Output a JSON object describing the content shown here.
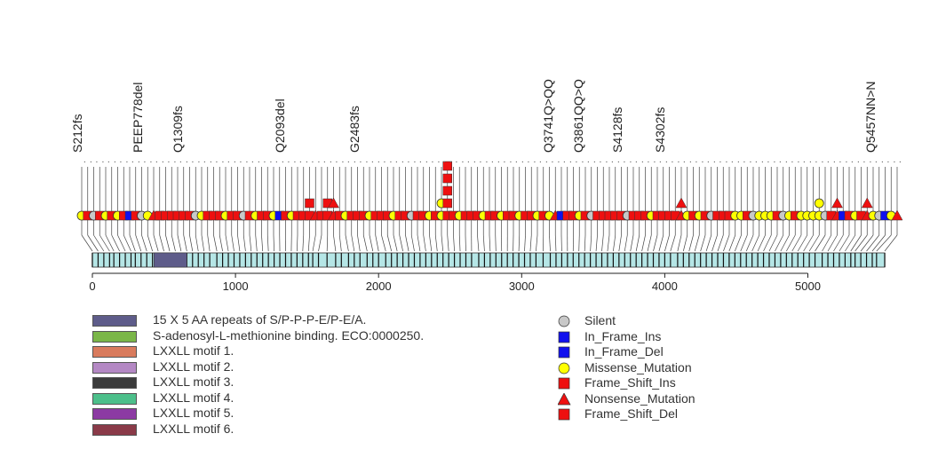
{
  "chart_data": {
    "type": "lollipop",
    "x_axis": {
      "min": 0,
      "max": 5537,
      "ticks": [
        0,
        1000,
        2000,
        3000,
        4000,
        5000
      ]
    },
    "protein_length": 5537,
    "domains": [
      {
        "name": "15 X 5 AA repeats of S/P-P-P-E/P-E/A.",
        "color": "#5e5c8a",
        "start": 430,
        "end": 660
      }
    ],
    "domain_legend": [
      {
        "label": "15 X 5 AA repeats of S/P-P-P-E/P-E/A.",
        "color": "#5e5c8a"
      },
      {
        "label": "S-adenosyl-L-methionine binding. ECO:0000250.",
        "color": "#7ab648"
      },
      {
        "label": "LXXLL motif 1.",
        "color": "#d97b5d"
      },
      {
        "label": "LXXLL motif 2.",
        "color": "#b488c4"
      },
      {
        "label": "LXXLL motif 3.",
        "color": "#3b3b3b"
      },
      {
        "label": "LXXLL motif 4.",
        "color": "#4cbf8a"
      },
      {
        "label": "LXXLL motif 5.",
        "color": "#8c3aa3"
      },
      {
        "label": "LXXLL motif 6.",
        "color": "#8a3a48"
      }
    ],
    "mutation_types": [
      {
        "label": "Silent",
        "color": "#c8c8c8",
        "shape": "circle"
      },
      {
        "label": "In_Frame_Ins",
        "color": "#1010ee",
        "shape": "square"
      },
      {
        "label": "In_Frame_Del",
        "color": "#1010ee",
        "shape": "square"
      },
      {
        "label": "Missense_Mutation",
        "color": "#ffff00",
        "shape": "circle"
      },
      {
        "label": "Frame_Shift_Ins",
        "color": "#ee1010",
        "shape": "square"
      },
      {
        "label": "Nonsense_Mutation",
        "color": "#ee1010",
        "shape": "triangle"
      },
      {
        "label": "Frame_Shift_Del",
        "color": "#ee1010",
        "shape": "square"
      }
    ],
    "mutation_labels": [
      "S212fs",
      "PEEP778del",
      "Q1309fs",
      "Q2093del",
      "G2483fs",
      "Q3741Q>QQ",
      "Q3861QQ>Q",
      "S4128fs",
      "S4302fs",
      "Q5457NN>N"
    ],
    "mutations": [
      {
        "pos": 0,
        "type": "Missense_Mutation",
        "count": 1
      },
      {
        "pos": 40,
        "type": "Frame_Shift_Del",
        "count": 1
      },
      {
        "pos": 80,
        "type": "Silent",
        "count": 1
      },
      {
        "pos": 120,
        "type": "Frame_Shift_Del",
        "count": 1
      },
      {
        "pos": 150,
        "type": "Missense_Mutation",
        "count": 1
      },
      {
        "pos": 190,
        "type": "Frame_Shift_Del",
        "count": 1
      },
      {
        "pos": 230,
        "type": "Missense_Mutation",
        "count": 1
      },
      {
        "pos": 270,
        "type": "Frame_Shift_Del",
        "count": 1
      },
      {
        "pos": 300,
        "type": "In_Frame_Del",
        "count": 1
      },
      {
        "pos": 340,
        "type": "Frame_Shift_Del",
        "count": 1
      },
      {
        "pos": 380,
        "type": "Silent",
        "count": 1
      },
      {
        "pos": 420,
        "type": "Missense_Mutation",
        "count": 1
      },
      {
        "pos": 460,
        "type": "Nonsense_Mutation",
        "count": 1
      },
      {
        "pos": 500,
        "type": "Frame_Shift_Del",
        "count": 1
      },
      {
        "pos": 540,
        "type": "Frame_Shift_Del",
        "count": 1
      },
      {
        "pos": 580,
        "type": "Frame_Shift_Del",
        "count": 1
      },
      {
        "pos": 620,
        "type": "Frame_Shift_Del",
        "count": 1
      },
      {
        "pos": 660,
        "type": "Frame_Shift_Del",
        "count": 1
      },
      {
        "pos": 700,
        "type": "Frame_Shift_Del",
        "count": 1
      },
      {
        "pos": 740,
        "type": "Silent",
        "count": 1
      },
      {
        "pos": 780,
        "type": "Missense_Mutation",
        "count": 1
      },
      {
        "pos": 820,
        "type": "Frame_Shift_Del",
        "count": 1
      },
      {
        "pos": 870,
        "type": "Frame_Shift_Del",
        "count": 1
      },
      {
        "pos": 910,
        "type": "Frame_Shift_Del",
        "count": 1
      },
      {
        "pos": 950,
        "type": "Missense_Mutation",
        "count": 1
      },
      {
        "pos": 990,
        "type": "Frame_Shift_Del",
        "count": 1
      },
      {
        "pos": 1030,
        "type": "Frame_Shift_Del",
        "count": 1
      },
      {
        "pos": 1070,
        "type": "Silent",
        "count": 1
      },
      {
        "pos": 1110,
        "type": "Frame_Shift_Del",
        "count": 1
      },
      {
        "pos": 1150,
        "type": "Missense_Mutation",
        "count": 1
      },
      {
        "pos": 1190,
        "type": "Frame_Shift_Del",
        "count": 1
      },
      {
        "pos": 1230,
        "type": "Frame_Shift_Del",
        "count": 1
      },
      {
        "pos": 1270,
        "type": "Missense_Mutation",
        "count": 1
      },
      {
        "pos": 1310,
        "type": "In_Frame_Del",
        "count": 1
      },
      {
        "pos": 1350,
        "type": "Frame_Shift_Del",
        "count": 1
      },
      {
        "pos": 1390,
        "type": "Missense_Mutation",
        "count": 1
      },
      {
        "pos": 1430,
        "type": "Frame_Shift_Del",
        "count": 1
      },
      {
        "pos": 1470,
        "type": "Frame_Shift_Del",
        "count": 1
      },
      {
        "pos": 1510,
        "type": "Frame_Shift_Del",
        "count": 2
      },
      {
        "pos": 1540,
        "type": "Nonsense_Mutation",
        "count": 1
      },
      {
        "pos": 1580,
        "type": "Frame_Shift_Del",
        "count": 1
      },
      {
        "pos": 1640,
        "type": "Frame_Shift_Del",
        "count": 2
      },
      {
        "pos": 1700,
        "type": "Nonsense_Mutation",
        "count": 2
      },
      {
        "pos": 1740,
        "type": "Frame_Shift_Del",
        "count": 1
      },
      {
        "pos": 1790,
        "type": "Missense_Mutation",
        "count": 1
      },
      {
        "pos": 1830,
        "type": "Frame_Shift_Del",
        "count": 1
      },
      {
        "pos": 1870,
        "type": "Frame_Shift_Del",
        "count": 1
      },
      {
        "pos": 1920,
        "type": "Frame_Shift_Del",
        "count": 1
      },
      {
        "pos": 1960,
        "type": "Missense_Mutation",
        "count": 1
      },
      {
        "pos": 2000,
        "type": "Frame_Shift_Del",
        "count": 1
      },
      {
        "pos": 2050,
        "type": "Frame_Shift_Del",
        "count": 1
      },
      {
        "pos": 2090,
        "type": "Frame_Shift_Del",
        "count": 1
      },
      {
        "pos": 2130,
        "type": "Missense_Mutation",
        "count": 1
      },
      {
        "pos": 2170,
        "type": "Frame_Shift_Del",
        "count": 1
      },
      {
        "pos": 2210,
        "type": "Frame_Shift_Del",
        "count": 1
      },
      {
        "pos": 2250,
        "type": "Silent",
        "count": 1
      },
      {
        "pos": 2290,
        "type": "Frame_Shift_Del",
        "count": 1
      },
      {
        "pos": 2330,
        "type": "Frame_Shift_Del",
        "count": 1
      },
      {
        "pos": 2370,
        "type": "Missense_Mutation",
        "count": 1
      },
      {
        "pos": 2410,
        "type": "Frame_Shift_Del",
        "count": 1
      },
      {
        "pos": 2450,
        "type": "Missense_Mutation",
        "count": 2
      },
      {
        "pos": 2490,
        "type": "Frame_Shift_Del",
        "count": 5
      },
      {
        "pos": 2530,
        "type": "Frame_Shift_Del",
        "count": 1
      },
      {
        "pos": 2570,
        "type": "Missense_Mutation",
        "count": 1
      },
      {
        "pos": 2610,
        "type": "Frame_Shift_Del",
        "count": 1
      },
      {
        "pos": 2650,
        "type": "Frame_Shift_Del",
        "count": 1
      },
      {
        "pos": 2700,
        "type": "Frame_Shift_Del",
        "count": 1
      },
      {
        "pos": 2740,
        "type": "Missense_Mutation",
        "count": 1
      },
      {
        "pos": 2780,
        "type": "Frame_Shift_Del",
        "count": 1
      },
      {
        "pos": 2820,
        "type": "Frame_Shift_Del",
        "count": 1
      },
      {
        "pos": 2860,
        "type": "Missense_Mutation",
        "count": 1
      },
      {
        "pos": 2900,
        "type": "Frame_Shift_Del",
        "count": 1
      },
      {
        "pos": 2940,
        "type": "Frame_Shift_Del",
        "count": 1
      },
      {
        "pos": 2980,
        "type": "Missense_Mutation",
        "count": 1
      },
      {
        "pos": 3020,
        "type": "Frame_Shift_Del",
        "count": 1
      },
      {
        "pos": 3060,
        "type": "Frame_Shift_Del",
        "count": 1
      },
      {
        "pos": 3100,
        "type": "Missense_Mutation",
        "count": 1
      },
      {
        "pos": 3150,
        "type": "Frame_Shift_Del",
        "count": 1
      },
      {
        "pos": 3200,
        "type": "Missense_Mutation",
        "count": 1
      },
      {
        "pos": 3240,
        "type": "Nonsense_Mutation",
        "count": 1
      },
      {
        "pos": 3280,
        "type": "In_Frame_Del",
        "count": 1
      },
      {
        "pos": 3320,
        "type": "Frame_Shift_Del",
        "count": 1
      },
      {
        "pos": 3360,
        "type": "Frame_Shift_Del",
        "count": 1
      },
      {
        "pos": 3400,
        "type": "Missense_Mutation",
        "count": 1
      },
      {
        "pos": 3440,
        "type": "Frame_Shift_Del",
        "count": 1
      },
      {
        "pos": 3480,
        "type": "Silent",
        "count": 1
      },
      {
        "pos": 3520,
        "type": "Frame_Shift_Del",
        "count": 1
      },
      {
        "pos": 3560,
        "type": "Frame_Shift_Del",
        "count": 1
      },
      {
        "pos": 3600,
        "type": "Frame_Shift_Del",
        "count": 1
      },
      {
        "pos": 3640,
        "type": "Frame_Shift_Del",
        "count": 1
      },
      {
        "pos": 3680,
        "type": "Frame_Shift_Del",
        "count": 1
      },
      {
        "pos": 3720,
        "type": "Silent",
        "count": 1
      },
      {
        "pos": 3760,
        "type": "Frame_Shift_Del",
        "count": 1
      },
      {
        "pos": 3800,
        "type": "Frame_Shift_Del",
        "count": 1
      },
      {
        "pos": 3840,
        "type": "Frame_Shift_Del",
        "count": 1
      },
      {
        "pos": 3880,
        "type": "Missense_Mutation",
        "count": 1
      },
      {
        "pos": 3920,
        "type": "Frame_Shift_Del",
        "count": 1
      },
      {
        "pos": 3960,
        "type": "Frame_Shift_Del",
        "count": 1
      },
      {
        "pos": 4000,
        "type": "Frame_Shift_Del",
        "count": 1
      },
      {
        "pos": 4040,
        "type": "Frame_Shift_Del",
        "count": 1
      },
      {
        "pos": 4090,
        "type": "Nonsense_Mutation",
        "count": 2
      },
      {
        "pos": 4130,
        "type": "Missense_Mutation",
        "count": 1
      },
      {
        "pos": 4170,
        "type": "Frame_Shift_Del",
        "count": 1
      },
      {
        "pos": 4210,
        "type": "Missense_Mutation",
        "count": 1
      },
      {
        "pos": 4250,
        "type": "Frame_Shift_Del",
        "count": 1
      },
      {
        "pos": 4290,
        "type": "Silent",
        "count": 1
      },
      {
        "pos": 4330,
        "type": "Frame_Shift_Del",
        "count": 1
      },
      {
        "pos": 4370,
        "type": "Frame_Shift_Del",
        "count": 1
      },
      {
        "pos": 4410,
        "type": "Frame_Shift_Del",
        "count": 1
      },
      {
        "pos": 4450,
        "type": "Missense_Mutation",
        "count": 1
      },
      {
        "pos": 4490,
        "type": "Missense_Mutation",
        "count": 1
      },
      {
        "pos": 4530,
        "type": "Frame_Shift_Del",
        "count": 1
      },
      {
        "pos": 4570,
        "type": "Silent",
        "count": 1
      },
      {
        "pos": 4610,
        "type": "Missense_Mutation",
        "count": 1
      },
      {
        "pos": 4650,
        "type": "Missense_Mutation",
        "count": 1
      },
      {
        "pos": 4690,
        "type": "Missense_Mutation",
        "count": 1
      },
      {
        "pos": 4730,
        "type": "Frame_Shift_Del",
        "count": 1
      },
      {
        "pos": 4770,
        "type": "Silent",
        "count": 1
      },
      {
        "pos": 4810,
        "type": "Missense_Mutation",
        "count": 1
      },
      {
        "pos": 4850,
        "type": "Frame_Shift_Del",
        "count": 1
      },
      {
        "pos": 4890,
        "type": "Missense_Mutation",
        "count": 1
      },
      {
        "pos": 4930,
        "type": "Missense_Mutation",
        "count": 1
      },
      {
        "pos": 4970,
        "type": "Missense_Mutation",
        "count": 1
      },
      {
        "pos": 5010,
        "type": "Missense_Mutation",
        "count": 2
      },
      {
        "pos": 5050,
        "type": "Silent",
        "count": 1
      },
      {
        "pos": 5100,
        "type": "Frame_Shift_Del",
        "count": 1
      },
      {
        "pos": 5140,
        "type": "Nonsense_Mutation",
        "count": 2
      },
      {
        "pos": 5180,
        "type": "In_Frame_Del",
        "count": 1
      },
      {
        "pos": 5220,
        "type": "Frame_Shift_Del",
        "count": 1
      },
      {
        "pos": 5260,
        "type": "Missense_Mutation",
        "count": 1
      },
      {
        "pos": 5300,
        "type": "Frame_Shift_Del",
        "count": 1
      },
      {
        "pos": 5330,
        "type": "Nonsense_Mutation",
        "count": 2
      },
      {
        "pos": 5370,
        "type": "Missense_Mutation",
        "count": 1
      },
      {
        "pos": 5410,
        "type": "Silent",
        "count": 1
      },
      {
        "pos": 5450,
        "type": "In_Frame_Del",
        "count": 1
      },
      {
        "pos": 5480,
        "type": "Missense_Mutation",
        "count": 1
      },
      {
        "pos": 5537,
        "type": "Nonsense_Mutation",
        "count": 1
      }
    ]
  }
}
